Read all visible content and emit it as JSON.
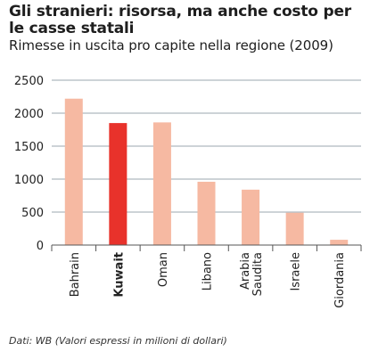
{
  "title": "Gli stranieri: risorsa, ma anche costo per le casse statali",
  "subtitle": "Rimesse in uscita pro capite nella regione (2009)",
  "source": "Dati: WB (Valori espressi in milioni di dollari)",
  "colors": {
    "bar": "#f6b9a2",
    "highlight": "#e8322b",
    "grid": "#7a8a94",
    "axis": "#555555"
  },
  "chart_data": {
    "type": "bar",
    "title": "Gli stranieri: risorsa, ma anche costo per le casse statali",
    "subtitle": "Rimesse in uscita pro capite nella regione (2009)",
    "categories": [
      "Bahrain",
      "Kuwait",
      "Oman",
      "Libano",
      "Arabia Saudita",
      "Israele",
      "Giordania"
    ],
    "values": [
      2220,
      1850,
      1860,
      960,
      840,
      490,
      80
    ],
    "highlight": "Kuwait",
    "ylim": [
      0,
      2500
    ],
    "yticks": [
      0,
      500,
      1000,
      1500,
      2000,
      2500
    ],
    "xlabel": "",
    "ylabel": "",
    "grid": true
  }
}
